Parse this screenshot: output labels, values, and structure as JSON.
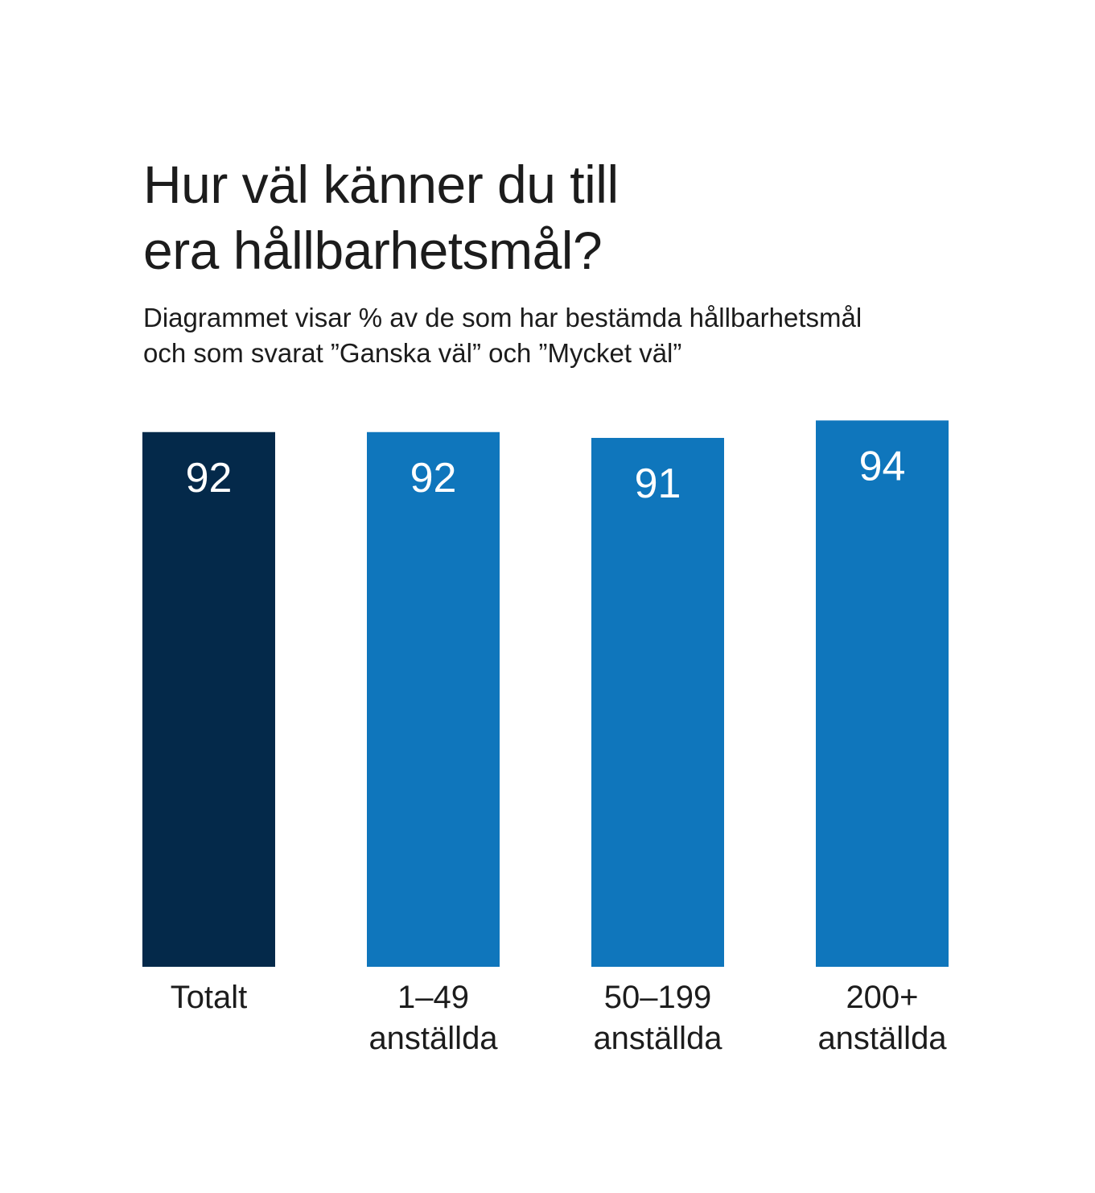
{
  "header": {
    "title_lines": [
      "Hur väl känner du till",
      "era hållbarhetsmål?"
    ],
    "subtitle_lines": [
      "Diagrammet visar % av de som har bestämda hållbarhetsmål",
      "och som svarat ”Ganska väl” och ”Mycket väl”"
    ]
  },
  "chart_data": {
    "type": "bar",
    "title": "Hur väl känner du till era hållbarhetsmål?",
    "subtitle": "Diagrammet visar % av de som har bestämda hållbarhetsmål och som svarat ”Ganska väl” och ”Mycket väl”",
    "categories": [
      [
        "Totalt"
      ],
      [
        "1–49",
        "anställda"
      ],
      [
        "50–199",
        "anställda"
      ],
      [
        "200+",
        "anställda"
      ]
    ],
    "values": [
      92,
      92,
      91,
      94
    ],
    "bar_colors": [
      "#04294a",
      "#0f76bc",
      "#0f76bc",
      "#0f76bc"
    ],
    "value_label_color": "#ffffff",
    "xlabel": "",
    "ylabel": "",
    "grid": false,
    "legend": "none"
  }
}
